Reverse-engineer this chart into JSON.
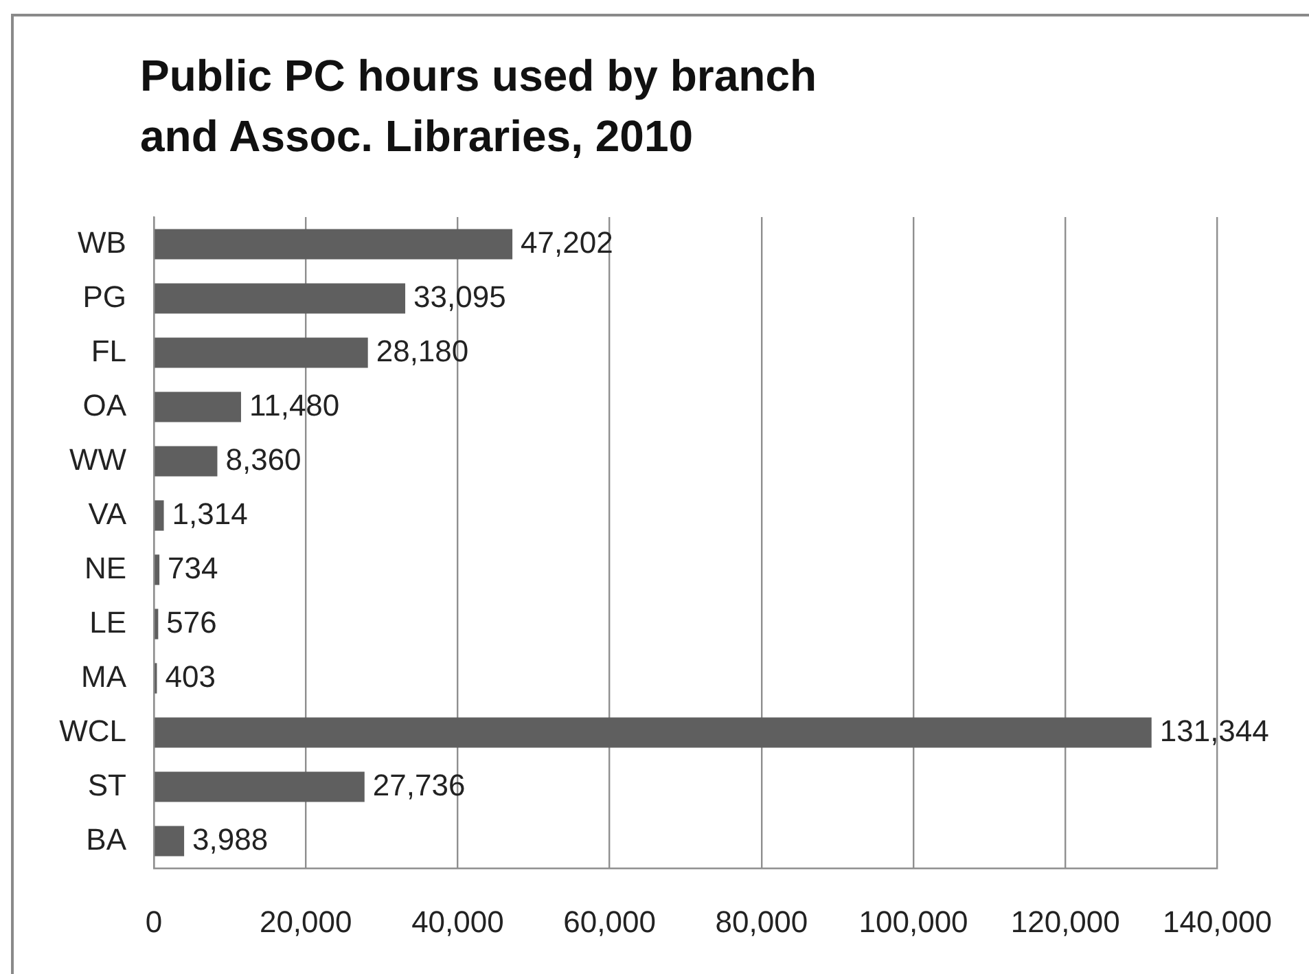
{
  "chart_data": {
    "type": "bar",
    "orientation": "horizontal",
    "title": "Public PC hours used by branch and Assoc. Libraries, 2010",
    "categories": [
      "WB",
      "PG",
      "FL",
      "OA",
      "WW",
      "VA",
      "NE",
      "LE",
      "MA",
      "WCL",
      "ST",
      "BA"
    ],
    "values": [
      47202,
      33095,
      28180,
      11480,
      8360,
      1314,
      734,
      576,
      403,
      131344,
      27736,
      3988
    ],
    "value_labels": [
      "47,202",
      "33,095",
      "28,180",
      "11,480",
      "8,360",
      "1,314",
      "734",
      "576",
      "403",
      "131,344",
      "27,736",
      "3,988"
    ],
    "color": "#5f5f5f",
    "xlim": [
      0,
      140000
    ],
    "xticks": [
      {
        "value": 0,
        "label": "0"
      },
      {
        "value": 20000,
        "label": "20,000"
      },
      {
        "value": 40000,
        "label": "40,000"
      },
      {
        "value": 60000,
        "label": "60,000"
      },
      {
        "value": 80000,
        "label": "80,000"
      },
      {
        "value": 100000,
        "label": "100,000"
      },
      {
        "value": 120000,
        "label": "120,000"
      },
      {
        "value": 140000,
        "label": "140,000"
      }
    ],
    "grid": "x"
  }
}
